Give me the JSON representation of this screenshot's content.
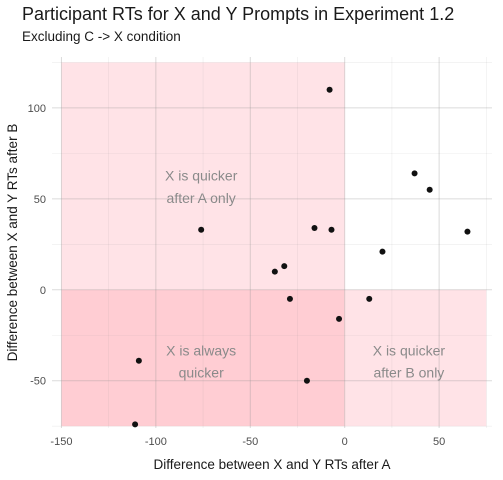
{
  "chart_data": {
    "type": "scatter",
    "title": "Participant RTs for X and Y Prompts in Experiment 1.2",
    "subtitle": "Excluding C -> X condition",
    "xlabel": "Difference between X and Y RTs after A",
    "ylabel": "Difference between X and Y RTs after B",
    "xlim": [
      -155,
      78
    ],
    "ylim": [
      -76,
      128
    ],
    "x_ticks": [
      -150,
      -100,
      -50,
      0,
      50
    ],
    "y_ticks": [
      -50,
      0,
      50,
      100
    ],
    "grid": true,
    "regions": [
      {
        "label": [
          "X is quicker",
          "after A only"
        ],
        "x": [
          -150,
          0
        ],
        "y": [
          0,
          125
        ],
        "color": "#ffe3e7",
        "label_at": [
          -76,
          60
        ]
      },
      {
        "label": [
          "X is always",
          "quicker"
        ],
        "x": [
          -150,
          0
        ],
        "y": [
          -75,
          0
        ],
        "color": "#ffcdd3",
        "label_at": [
          -76,
          -36
        ]
      },
      {
        "label": [
          "X is quicker",
          "after B only"
        ],
        "x": [
          0,
          75
        ],
        "y": [
          -75,
          0
        ],
        "color": "#ffe3e7",
        "label_at": [
          34,
          -36
        ]
      }
    ],
    "series": [
      {
        "point_color": "#111111",
        "points": [
          {
            "x": -8,
            "y": 110
          },
          {
            "x": 37,
            "y": 64
          },
          {
            "x": 45,
            "y": 55
          },
          {
            "x": -76,
            "y": 33
          },
          {
            "x": -16,
            "y": 34
          },
          {
            "x": -7,
            "y": 33
          },
          {
            "x": 65,
            "y": 32
          },
          {
            "x": 20,
            "y": 21
          },
          {
            "x": -32,
            "y": 13
          },
          {
            "x": -37,
            "y": 10
          },
          {
            "x": -29,
            "y": -5
          },
          {
            "x": 13,
            "y": -5
          },
          {
            "x": -3,
            "y": -16
          },
          {
            "x": -109,
            "y": -39
          },
          {
            "x": -20,
            "y": -50
          },
          {
            "x": -111,
            "y": -74
          }
        ]
      }
    ]
  }
}
